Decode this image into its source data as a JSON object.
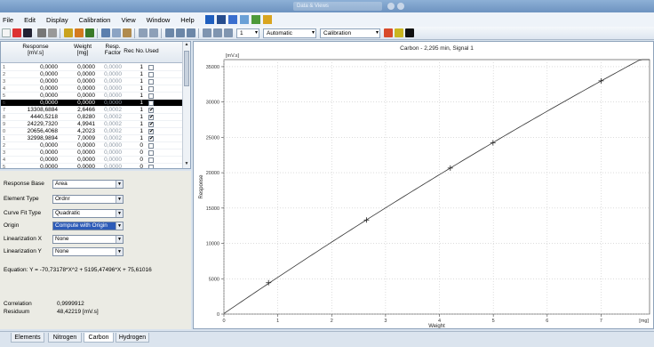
{
  "window": {
    "title": "Data & Views"
  },
  "menu": [
    "File",
    "Edit",
    "Display",
    "Calibration",
    "View",
    "Window",
    "Help"
  ],
  "toolbar": {
    "page_value": "1",
    "scale_mode": "Automatic",
    "calib_mode": "Calibration"
  },
  "grid": {
    "headers": {
      "response": "Response",
      "response_unit": "[mV.s]",
      "weight": "Weight",
      "weight_unit": "[mg]",
      "resp_factor": "Resp.",
      "resp_factor_2": "Factor",
      "rec_no": "Rec No.",
      "used": "Used"
    },
    "rows": [
      {
        "idx": "1",
        "response": "0,0000",
        "weight": "0,0000",
        "factor": "0,0000",
        "rec": "1",
        "used": false,
        "selected": false
      },
      {
        "idx": "2",
        "response": "0,0000",
        "weight": "0,0000",
        "factor": "0,0000",
        "rec": "1",
        "used": false,
        "selected": false
      },
      {
        "idx": "3",
        "response": "0,0000",
        "weight": "0,0000",
        "factor": "0,0000",
        "rec": "1",
        "used": false,
        "selected": false
      },
      {
        "idx": "4",
        "response": "0,0000",
        "weight": "0,0000",
        "factor": "0,0000",
        "rec": "1",
        "used": false,
        "selected": false
      },
      {
        "idx": "5",
        "response": "0,0000",
        "weight": "0,0000",
        "factor": "0,0000",
        "rec": "1",
        "used": false,
        "selected": false
      },
      {
        "idx": "6",
        "response": "0,0000",
        "weight": "0,0000",
        "factor": "0,0000",
        "rec": "1",
        "used": false,
        "selected": true
      },
      {
        "idx": "7",
        "response": "13308,6884",
        "weight": "2,6466",
        "factor": "0,0002",
        "rec": "1",
        "used": true,
        "selected": false
      },
      {
        "idx": "8",
        "response": "4440,5218",
        "weight": "0,8280",
        "factor": "0,0002",
        "rec": "1",
        "used": true,
        "selected": false
      },
      {
        "idx": "9",
        "response": "24229,7320",
        "weight": "4,9941",
        "factor": "0,0002",
        "rec": "1",
        "used": true,
        "selected": false
      },
      {
        "idx": "0",
        "response": "20656,4068",
        "weight": "4,2023",
        "factor": "0,0002",
        "rec": "1",
        "used": true,
        "selected": false
      },
      {
        "idx": "1",
        "response": "32998,9894",
        "weight": "7,0009",
        "factor": "0,0002",
        "rec": "1",
        "used": true,
        "selected": false
      },
      {
        "idx": "2",
        "response": "0,0000",
        "weight": "0,0000",
        "factor": "0,0000",
        "rec": "0",
        "used": false,
        "selected": false
      },
      {
        "idx": "3",
        "response": "0,0000",
        "weight": "0,0000",
        "factor": "0,0000",
        "rec": "0",
        "used": false,
        "selected": false
      },
      {
        "idx": "4",
        "response": "0,0000",
        "weight": "0,0000",
        "factor": "0,0000",
        "rec": "0",
        "used": false,
        "selected": false
      },
      {
        "idx": "5",
        "response": "0,0000",
        "weight": "0,0000",
        "factor": "0,0000",
        "rec": "0",
        "used": false,
        "selected": false
      }
    ]
  },
  "settings": {
    "response_base": {
      "label": "Response Base",
      "value": "Area"
    },
    "element_type": {
      "label": "Element Type",
      "value": "Ordnr"
    },
    "curve_fit": {
      "label": "Curve Fit Type",
      "value": "Quadratic"
    },
    "origin": {
      "label": "Origin",
      "value": "Compute with Origin"
    },
    "lin_x": {
      "label": "Linearization X",
      "value": "None"
    },
    "lin_y": {
      "label": "Linearization Y",
      "value": "None"
    },
    "equation": "Equation:  Y = -70,73178*X^2 + 5195,47496*X + 75,61016",
    "correlation_label": "Correlation",
    "correlation_value": "0,9999912",
    "residuum_label": "Residuum",
    "residuum_value": "48,42219 [mV.s]"
  },
  "tabs": [
    "Elements",
    "Nitrogen",
    "Carbon",
    "Hydrogen"
  ],
  "active_tab": "Carbon",
  "chart_data": {
    "type": "line",
    "title": "Carbon - 2,295 min, Signal 1",
    "xlabel": "Weight",
    "ylabel": "Response",
    "y_unit": "[mV.s]",
    "x_unit": "[mg]",
    "xlim": [
      0,
      7.9
    ],
    "ylim": [
      0,
      36000
    ],
    "x_ticks": [
      0,
      1,
      2,
      3,
      4,
      5,
      6,
      7
    ],
    "y_ticks": [
      0,
      5000,
      10000,
      15000,
      20000,
      25000,
      30000,
      35000
    ],
    "grid": true,
    "fit": {
      "a": -70.73178,
      "b": 5195.47496,
      "c": 75.61016
    },
    "points": {
      "x": [
        0.828,
        2.6466,
        4.2023,
        4.9941,
        7.0009
      ],
      "y": [
        4440.5218,
        13308.6884,
        20656.4068,
        24229.732,
        32998.9894
      ]
    },
    "line_color": "#333333",
    "marker_color": "#222222"
  }
}
